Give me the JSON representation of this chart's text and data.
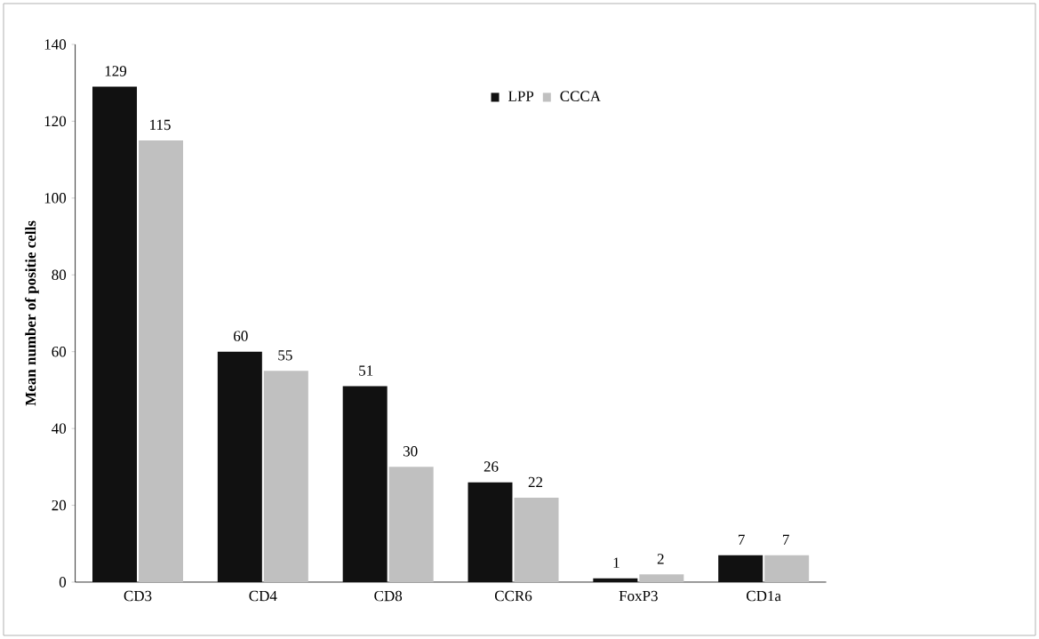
{
  "chart_data": {
    "type": "bar",
    "ylabel": "Mean number of positie cells",
    "categories": [
      "CD3",
      "CD4",
      "CD8",
      "CCR6",
      "FoxP3",
      "CD1a"
    ],
    "series": [
      {
        "name": "LPP",
        "color": "#111111",
        "values": [
          129,
          60,
          51,
          26,
          1,
          7
        ]
      },
      {
        "name": "CCCA",
        "color": "#c0c0c0",
        "values": [
          115,
          55,
          30,
          22,
          2,
          7
        ]
      }
    ],
    "ylim": [
      0,
      140
    ],
    "yticks": [
      0,
      20,
      40,
      60,
      80,
      100,
      120,
      140
    ],
    "data_labels": true,
    "legend": "top right",
    "grid": false
  }
}
